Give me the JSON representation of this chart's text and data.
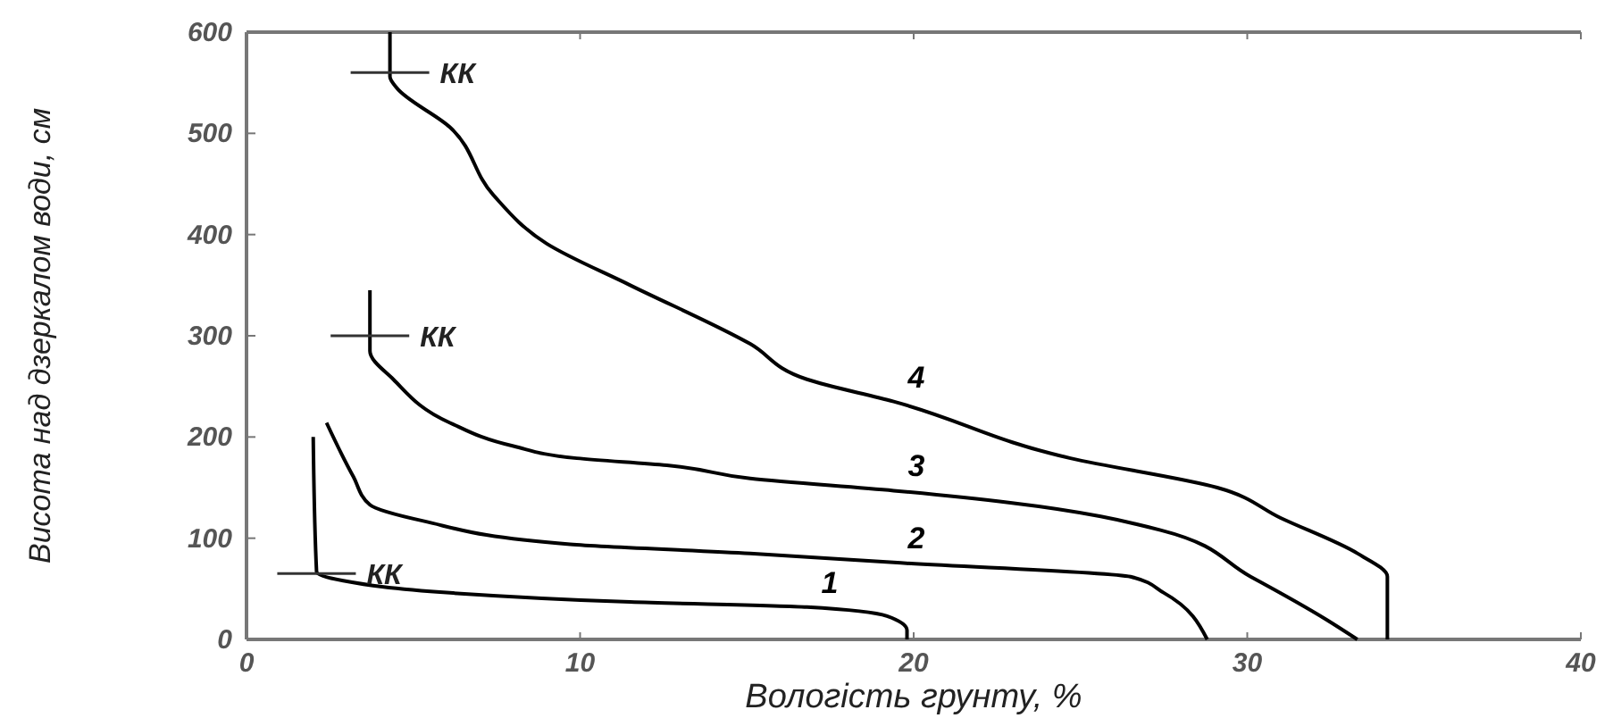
{
  "chart_data": {
    "type": "line",
    "xlabel": "Вологість грунту, %",
    "ylabel": "Висота над дзеркалом води, см",
    "xlim": [
      0,
      40
    ],
    "ylim": [
      0,
      600
    ],
    "xticks": [
      0,
      10,
      20,
      30,
      40
    ],
    "yticks": [
      0,
      100,
      200,
      300,
      400,
      500,
      600
    ],
    "marker": "none",
    "line_style": "solid",
    "series": [
      {
        "name": "1",
        "color": "#000000",
        "x": [
          2.0,
          2.1,
          2.9,
          6.1,
          11.5,
          16.8,
          19.2,
          19.8,
          19.8
        ],
        "values": [
          200,
          67,
          58,
          46,
          37,
          32,
          23,
          9,
          0
        ]
      },
      {
        "name": "2",
        "color": "#000000",
        "x": [
          2.4,
          3.2,
          3.7,
          5.3,
          9.7,
          15.1,
          19.4,
          26.5,
          27.5,
          28.8
        ],
        "values": [
          214,
          161,
          133,
          117,
          94,
          85,
          76,
          62,
          46,
          0
        ]
      },
      {
        "name": "3",
        "color": "#000000",
        "x": [
          3.7,
          3.7,
          4.4,
          6.1,
          8.0,
          9.9,
          12.6,
          15.1,
          19.4,
          22.9,
          27.4,
          30.1,
          32.4,
          33.3
        ],
        "values": [
          345,
          285,
          257,
          214,
          191,
          179,
          172,
          159,
          147,
          135,
          108,
          62,
          19,
          0
        ]
      },
      {
        "name": "4",
        "color": "#000000",
        "x": [
          4.3,
          4.3,
          4.5,
          6.1,
          7.4,
          9.0,
          11.5,
          15.1,
          16.8,
          19.4,
          24.7,
          29.1,
          31.0,
          33.3,
          34.2,
          34.2
        ],
        "values": [
          600,
          556,
          545,
          506,
          439,
          391,
          350,
          292,
          257,
          235,
          179,
          150,
          120,
          85,
          62,
          0
        ]
      }
    ],
    "annotations": [
      {
        "text": "КК",
        "x": 4.3,
        "y": 560
      },
      {
        "text": "КК",
        "x": 3.7,
        "y": 300
      },
      {
        "text": "КК",
        "x": 2.1,
        "y": 65
      }
    ]
  }
}
